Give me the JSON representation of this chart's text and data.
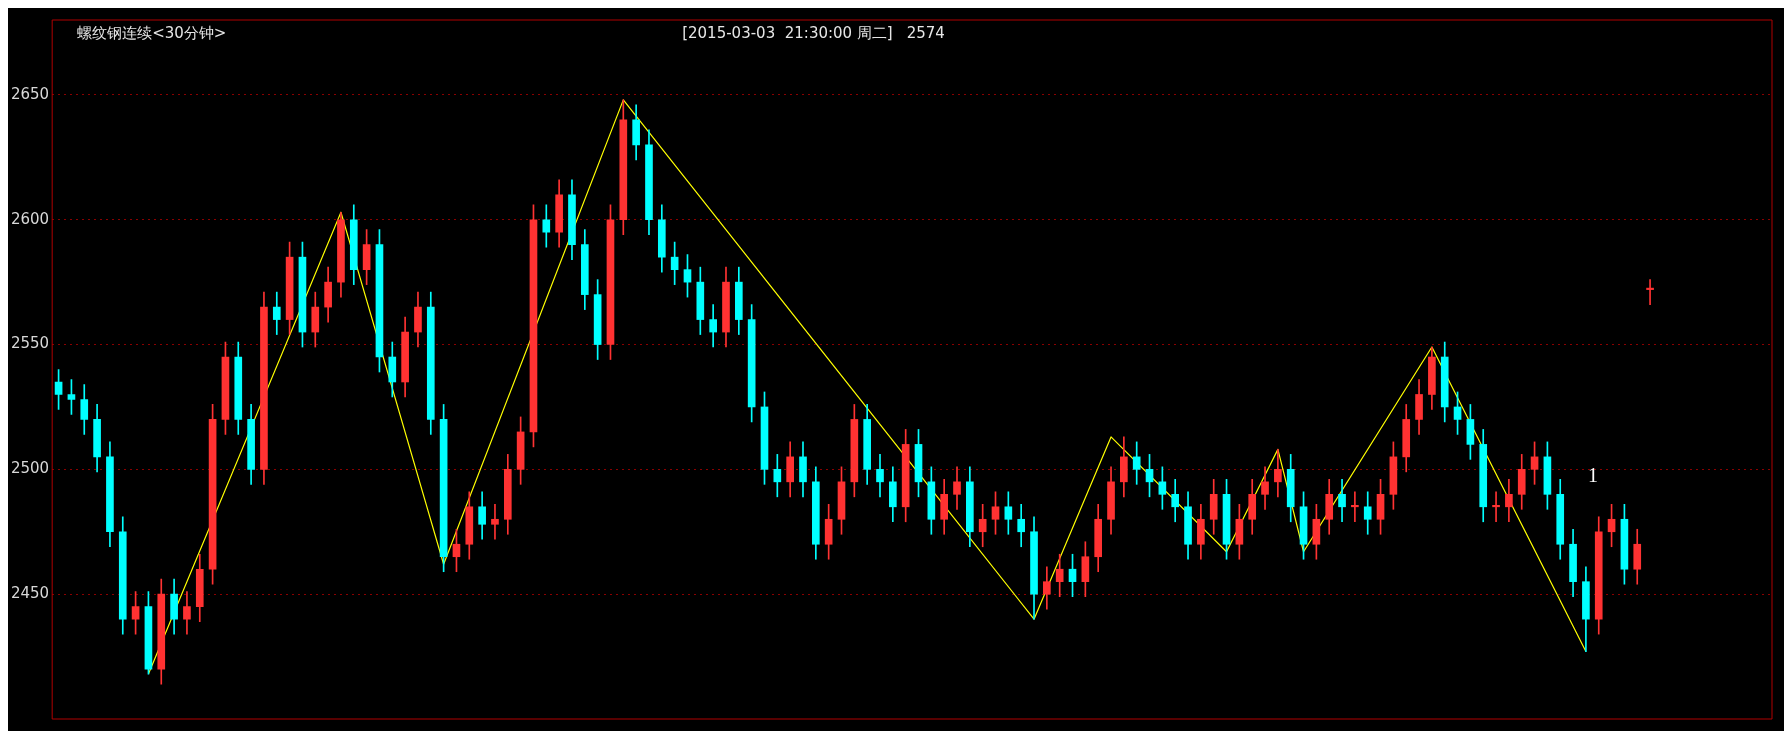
{
  "chart_data": {
    "type": "candlestick",
    "title": "螺纹钢连续<30分钟>",
    "subtitle": "[2015-03-03  21:30:00 周二]",
    "annotations": [
      "2574",
      "1"
    ],
    "categories": [
      null,
      null,
      null,
      null,
      null,
      null,
      null,
      null,
      null,
      null,
      null,
      null,
      null,
      null,
      null,
      null,
      null,
      null,
      null,
      null,
      null,
      null,
      null,
      null,
      null,
      null,
      null,
      null,
      null,
      null,
      null,
      null,
      null,
      null,
      null,
      null,
      null,
      null,
      null,
      null,
      null,
      null,
      null,
      null,
      null,
      null,
      null,
      null,
      null,
      null,
      null,
      null,
      null,
      null,
      null,
      null,
      null,
      null,
      null,
      null,
      null,
      null,
      null,
      null,
      null,
      null,
      null,
      null,
      null,
      null,
      null,
      null,
      null,
      null,
      null,
      null,
      null,
      null,
      null,
      null,
      null,
      null,
      null,
      null,
      null,
      null,
      null,
      null,
      null,
      null,
      null,
      null,
      null,
      null,
      null,
      null,
      null,
      null,
      null,
      null,
      null,
      null,
      null,
      null,
      null,
      null,
      null,
      null,
      null,
      null,
      null,
      null,
      null,
      null,
      null,
      null,
      null,
      null,
      null,
      null,
      null,
      null,
      null,
      null,
      null,
      null,
      null,
      null,
      null,
      null,
      null,
      null,
      null,
      null
    ],
    "ohlc": [
      [
        2535,
        2540,
        2524,
        2530
      ],
      [
        2530,
        2536,
        2522,
        2528
      ],
      [
        2528,
        2534,
        2514,
        2520
      ],
      [
        2520,
        2526,
        2499,
        2505
      ],
      [
        2505,
        2511,
        2469,
        2475
      ],
      [
        2475,
        2481,
        2434,
        2440
      ],
      [
        2440,
        2451,
        2434,
        2445
      ],
      [
        2445,
        2451,
        2418,
        2420
      ],
      [
        2420,
        2456,
        2414,
        2450
      ],
      [
        2450,
        2456,
        2434,
        2440
      ],
      [
        2440,
        2451,
        2434,
        2445
      ],
      [
        2445,
        2466,
        2439,
        2460
      ],
      [
        2460,
        2526,
        2454,
        2520
      ],
      [
        2520,
        2551,
        2514,
        2545
      ],
      [
        2545,
        2551,
        2514,
        2520
      ],
      [
        2520,
        2526,
        2494,
        2500
      ],
      [
        2500,
        2571,
        2494,
        2565
      ],
      [
        2565,
        2571,
        2554,
        2560
      ],
      [
        2560,
        2591,
        2554,
        2585
      ],
      [
        2585,
        2591,
        2549,
        2555
      ],
      [
        2555,
        2571,
        2549,
        2565
      ],
      [
        2565,
        2581,
        2559,
        2575
      ],
      [
        2575,
        2603,
        2569,
        2600
      ],
      [
        2600,
        2606,
        2574,
        2580
      ],
      [
        2580,
        2596,
        2574,
        2590
      ],
      [
        2590,
        2596,
        2539,
        2545
      ],
      [
        2545,
        2551,
        2529,
        2535
      ],
      [
        2535,
        2561,
        2529,
        2555
      ],
      [
        2555,
        2571,
        2549,
        2565
      ],
      [
        2565,
        2571,
        2514,
        2520
      ],
      [
        2520,
        2526,
        2459,
        2465
      ],
      [
        2465,
        2476,
        2459,
        2470
      ],
      [
        2470,
        2491,
        2464,
        2485
      ],
      [
        2485,
        2491,
        2472,
        2478
      ],
      [
        2478,
        2486,
        2472,
        2480
      ],
      [
        2480,
        2506,
        2474,
        2500
      ],
      [
        2500,
        2521,
        2494,
        2515
      ],
      [
        2515,
        2606,
        2509,
        2600
      ],
      [
        2600,
        2606,
        2589,
        2595
      ],
      [
        2595,
        2616,
        2589,
        2610
      ],
      [
        2610,
        2616,
        2584,
        2590
      ],
      [
        2590,
        2596,
        2564,
        2570
      ],
      [
        2570,
        2576,
        2544,
        2550
      ],
      [
        2550,
        2606,
        2544,
        2600
      ],
      [
        2600,
        2648,
        2594,
        2640
      ],
      [
        2640,
        2646,
        2624,
        2630
      ],
      [
        2630,
        2636,
        2594,
        2600
      ],
      [
        2600,
        2606,
        2579,
        2585
      ],
      [
        2585,
        2591,
        2574,
        2580
      ],
      [
        2580,
        2586,
        2569,
        2575
      ],
      [
        2575,
        2581,
        2554,
        2560
      ],
      [
        2560,
        2566,
        2549,
        2555
      ],
      [
        2555,
        2581,
        2549,
        2575
      ],
      [
        2575,
        2581,
        2554,
        2560
      ],
      [
        2560,
        2566,
        2519,
        2525
      ],
      [
        2525,
        2531,
        2494,
        2500
      ],
      [
        2500,
        2506,
        2489,
        2495
      ],
      [
        2495,
        2511,
        2489,
        2505
      ],
      [
        2505,
        2511,
        2489,
        2495
      ],
      [
        2495,
        2501,
        2464,
        2470
      ],
      [
        2470,
        2486,
        2464,
        2480
      ],
      [
        2480,
        2501,
        2474,
        2495
      ],
      [
        2495,
        2526,
        2489,
        2520
      ],
      [
        2520,
        2526,
        2494,
        2500
      ],
      [
        2500,
        2506,
        2489,
        2495
      ],
      [
        2495,
        2501,
        2479,
        2485
      ],
      [
        2485,
        2516,
        2479,
        2510
      ],
      [
        2510,
        2516,
        2489,
        2495
      ],
      [
        2495,
        2501,
        2474,
        2480
      ],
      [
        2480,
        2496,
        2474,
        2490
      ],
      [
        2490,
        2501,
        2484,
        2495
      ],
      [
        2495,
        2501,
        2469,
        2475
      ],
      [
        2475,
        2486,
        2469,
        2480
      ],
      [
        2480,
        2491,
        2474,
        2485
      ],
      [
        2485,
        2491,
        2474,
        2480
      ],
      [
        2480,
        2486,
        2469,
        2475
      ],
      [
        2475,
        2481,
        2440,
        2450
      ],
      [
        2450,
        2461,
        2444,
        2455
      ],
      [
        2455,
        2466,
        2449,
        2460
      ],
      [
        2460,
        2466,
        2449,
        2455
      ],
      [
        2455,
        2471,
        2449,
        2465
      ],
      [
        2465,
        2486,
        2459,
        2480
      ],
      [
        2480,
        2501,
        2474,
        2495
      ],
      [
        2495,
        2513,
        2489,
        2505
      ],
      [
        2505,
        2511,
        2494,
        2500
      ],
      [
        2500,
        2506,
        2489,
        2495
      ],
      [
        2495,
        2501,
        2484,
        2490
      ],
      [
        2490,
        2496,
        2479,
        2485
      ],
      [
        2485,
        2491,
        2464,
        2470
      ],
      [
        2470,
        2486,
        2464,
        2480
      ],
      [
        2480,
        2496,
        2474,
        2490
      ],
      [
        2490,
        2496,
        2464,
        2470
      ],
      [
        2470,
        2486,
        2464,
        2480
      ],
      [
        2480,
        2496,
        2474,
        2490
      ],
      [
        2490,
        2501,
        2484,
        2495
      ],
      [
        2495,
        2508,
        2489,
        2500
      ],
      [
        2500,
        2506,
        2479,
        2485
      ],
      [
        2485,
        2491,
        2464,
        2470
      ],
      [
        2470,
        2486,
        2464,
        2480
      ],
      [
        2480,
        2496,
        2474,
        2490
      ],
      [
        2490,
        2496,
        2479,
        2485
      ],
      [
        2485,
        2491,
        2479,
        2485
      ],
      [
        2485,
        2491,
        2474,
        2480
      ],
      [
        2480,
        2496,
        2474,
        2490
      ],
      [
        2490,
        2511,
        2484,
        2505
      ],
      [
        2505,
        2526,
        2499,
        2520
      ],
      [
        2520,
        2536,
        2514,
        2530
      ],
      [
        2530,
        2549,
        2524,
        2545
      ],
      [
        2545,
        2551,
        2519,
        2525
      ],
      [
        2525,
        2531,
        2514,
        2520
      ],
      [
        2520,
        2526,
        2504,
        2510
      ],
      [
        2510,
        2516,
        2479,
        2485
      ],
      [
        2485,
        2491,
        2479,
        2485
      ],
      [
        2485,
        2496,
        2479,
        2490
      ],
      [
        2490,
        2506,
        2484,
        2500
      ],
      [
        2500,
        2511,
        2494,
        2505
      ],
      [
        2505,
        2511,
        2484,
        2490
      ],
      [
        2490,
        2496,
        2464,
        2470
      ],
      [
        2470,
        2476,
        2449,
        2455
      ],
      [
        2455,
        2461,
        2427,
        2440
      ],
      [
        2440,
        2481,
        2434,
        2475
      ],
      [
        2475,
        2486,
        2469,
        2480
      ],
      [
        2480,
        2486,
        2454,
        2460
      ],
      [
        2460,
        2476,
        2454,
        2470
      ],
      [
        2572,
        2576,
        2566,
        2572
      ],
      null,
      null,
      null,
      null,
      null,
      null,
      null,
      null,
      null
    ],
    "colors": [
      "#00ffff",
      "#00ffff",
      "#00ffff",
      "#00ffff",
      "#00ffff",
      "#00ffff",
      "#ff3232",
      "#00ffff",
      "#ff3232",
      "#00ffff",
      "#ff3232",
      "#ff3232",
      "#ff3232",
      "#ff3232",
      "#00ffff",
      "#00ffff",
      "#ff3232",
      "#00ffff",
      "#ff3232",
      "#00ffff",
      "#ff3232",
      "#ff3232",
      "#ff3232",
      "#00ffff",
      "#ff3232",
      "#00ffff",
      "#00ffff",
      "#ff3232",
      "#ff3232",
      "#00ffff",
      "#00ffff",
      "#ff3232",
      "#ff3232",
      "#00ffff",
      "#ff3232",
      "#ff3232",
      "#ff3232",
      "#ff3232",
      "#00ffff",
      "#ff3232",
      "#00ffff",
      "#00ffff",
      "#00ffff",
      "#ff3232",
      "#ff3232",
      "#00ffff",
      "#00ffff",
      "#00ffff",
      "#00ffff",
      "#00ffff",
      "#00ffff",
      "#00ffff",
      "#ff3232",
      "#00ffff",
      "#00ffff",
      "#00ffff",
      "#00ffff",
      "#ff3232",
      "#00ffff",
      "#00ffff",
      "#ff3232",
      "#ff3232",
      "#ff3232",
      "#00ffff",
      "#00ffff",
      "#00ffff",
      "#ff3232",
      "#00ffff",
      "#00ffff",
      "#ff3232",
      "#ff3232",
      "#00ffff",
      "#ff3232",
      "#ff3232",
      "#00ffff",
      "#00ffff",
      "#00ffff",
      "#ff3232",
      "#ff3232",
      "#00ffff",
      "#ff3232",
      "#ff3232",
      "#ff3232",
      "#ff3232",
      "#00ffff",
      "#00ffff",
      "#00ffff",
      "#00ffff",
      "#00ffff",
      "#ff3232",
      "#ff3232",
      "#00ffff",
      "#ff3232",
      "#ff3232",
      "#ff3232",
      "#ff3232",
      "#00ffff",
      "#00ffff",
      "#ff3232",
      "#ff3232",
      "#00ffff",
      "#ff3232",
      "#00ffff",
      "#ff3232",
      "#ff3232",
      "#ff3232",
      "#ff3232",
      "#ff3232",
      "#00ffff",
      "#00ffff",
      "#00ffff",
      "#00ffff",
      "#ff3232",
      "#ff3232",
      "#ff3232",
      "#ff3232",
      "#00ffff",
      "#00ffff",
      "#00ffff",
      "#00ffff",
      "#ff3232",
      "#ff3232",
      "#00ffff",
      "#ff3232",
      "#ff3232",
      null,
      null,
      null,
      null,
      null,
      null,
      null,
      null,
      null
    ],
    "series": [
      {
        "type": "line",
        "color": "#ffff00",
        "values": [
          null,
          null,
          null,
          null,
          null,
          null,
          null,
          2418,
          null,
          null,
          null,
          null,
          null,
          null,
          null,
          null,
          null,
          null,
          null,
          null,
          null,
          null,
          2603,
          null,
          null,
          null,
          null,
          null,
          null,
          null,
          2462,
          null,
          null,
          null,
          null,
          null,
          null,
          null,
          null,
          null,
          null,
          null,
          null,
          null,
          2648,
          null,
          null,
          null,
          null,
          null,
          null,
          null,
          null,
          null,
          null,
          null,
          null,
          null,
          null,
          null,
          null,
          null,
          null,
          null,
          null,
          null,
          null,
          null,
          null,
          null,
          null,
          null,
          null,
          null,
          null,
          null,
          2440,
          null,
          null,
          null,
          null,
          null,
          2513,
          null,
          null,
          null,
          null,
          null,
          null,
          null,
          null,
          2467,
          null,
          null,
          null,
          2508,
          null,
          2467,
          null,
          null,
          null,
          null,
          null,
          null,
          null,
          null,
          null,
          2549,
          null,
          null,
          null,
          null,
          null,
          null,
          null,
          null,
          null,
          null,
          null,
          2427,
          null,
          null,
          null,
          null,
          null,
          null,
          null,
          null,
          null,
          null,
          null,
          null,
          null,
          null
        ]
      }
    ],
    "ylim": [
      2400,
      2680
    ],
    "yticks": [
      2450,
      2500,
      2550,
      2600,
      2650
    ],
    "grid": "y",
    "tick_labels": "y"
  }
}
